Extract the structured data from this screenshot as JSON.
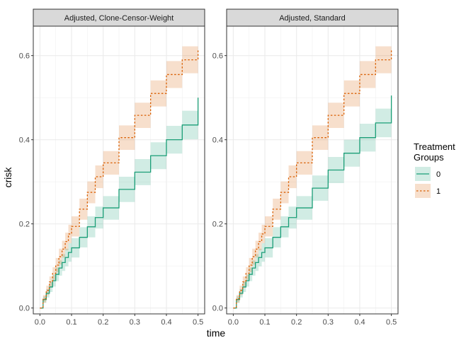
{
  "figure": {
    "xlabel": "time",
    "ylabel": "crisk",
    "legend": {
      "title_line1": "Treatment",
      "title_line2": "Groups",
      "placement": "right",
      "entries": [
        {
          "label": "0",
          "color": "#1b9e77",
          "linestyle": "solid"
        },
        {
          "label": "1",
          "color": "#d95f02",
          "linestyle": "dotted"
        }
      ]
    },
    "grid": true,
    "band_opacity": 0.2
  },
  "chart_data": [
    {
      "type": "line",
      "step": true,
      "title": "Adjusted, Clone-Censor-Weight",
      "xlabel": "time",
      "ylabel": "crisk",
      "xlim": [
        -0.021,
        0.521
      ],
      "ylim": [
        -0.014,
        0.67
      ],
      "xticks": [
        0.0,
        0.1,
        0.2,
        0.3,
        0.4,
        0.5
      ],
      "xtick_labels": [
        "0.0",
        "0.1",
        "0.2",
        "0.3",
        "0.4",
        "0.5"
      ],
      "yticks": [
        0.0,
        0.2,
        0.4,
        0.6
      ],
      "ytick_labels": [
        "0.0",
        "0.2",
        "0.4",
        "0.6"
      ],
      "series": [
        {
          "name": "0",
          "x": [
            0.0,
            0.01,
            0.02,
            0.03,
            0.04,
            0.05,
            0.06,
            0.07,
            0.08,
            0.09,
            0.1,
            0.125,
            0.15,
            0.175,
            0.2,
            0.25,
            0.3,
            0.35,
            0.4,
            0.45,
            0.5
          ],
          "y": [
            0.0,
            0.02,
            0.035,
            0.05,
            0.065,
            0.08,
            0.095,
            0.108,
            0.12,
            0.132,
            0.143,
            0.168,
            0.193,
            0.215,
            0.238,
            0.282,
            0.323,
            0.362,
            0.4,
            0.435,
            0.5
          ],
          "lower": [
            0.0,
            0.012,
            0.025,
            0.038,
            0.051,
            0.064,
            0.077,
            0.088,
            0.099,
            0.11,
            0.12,
            0.144,
            0.168,
            0.189,
            0.21,
            0.252,
            0.292,
            0.33,
            0.367,
            0.401,
            0.482
          ],
          "upper": [
            0.0,
            0.028,
            0.045,
            0.062,
            0.079,
            0.096,
            0.113,
            0.128,
            0.141,
            0.154,
            0.166,
            0.192,
            0.218,
            0.241,
            0.266,
            0.312,
            0.354,
            0.394,
            0.433,
            0.469,
            0.518
          ]
        },
        {
          "name": "1",
          "x": [
            0.0,
            0.01,
            0.02,
            0.03,
            0.04,
            0.05,
            0.06,
            0.07,
            0.08,
            0.09,
            0.1,
            0.125,
            0.15,
            0.175,
            0.2,
            0.25,
            0.3,
            0.35,
            0.4,
            0.45,
            0.5
          ],
          "y": [
            0.0,
            0.022,
            0.042,
            0.062,
            0.082,
            0.102,
            0.122,
            0.14,
            0.158,
            0.176,
            0.194,
            0.235,
            0.275,
            0.312,
            0.345,
            0.405,
            0.458,
            0.51,
            0.555,
            0.59,
            0.615
          ],
          "lower": [
            0.0,
            0.013,
            0.031,
            0.049,
            0.067,
            0.085,
            0.103,
            0.12,
            0.137,
            0.154,
            0.17,
            0.21,
            0.249,
            0.285,
            0.317,
            0.376,
            0.428,
            0.479,
            0.523,
            0.558,
            0.595
          ],
          "upper": [
            0.0,
            0.031,
            0.053,
            0.075,
            0.097,
            0.119,
            0.141,
            0.16,
            0.179,
            0.198,
            0.218,
            0.26,
            0.301,
            0.339,
            0.373,
            0.434,
            0.488,
            0.541,
            0.587,
            0.622,
            0.635
          ]
        }
      ]
    },
    {
      "type": "line",
      "step": true,
      "title": "Adjusted, Standard",
      "xlabel": "time",
      "ylabel": "crisk",
      "xlim": [
        -0.021,
        0.521
      ],
      "ylim": [
        -0.014,
        0.67
      ],
      "xticks": [
        0.0,
        0.1,
        0.2,
        0.3,
        0.4,
        0.5
      ],
      "xtick_labels": [
        "0.0",
        "0.1",
        "0.2",
        "0.3",
        "0.4",
        "0.5"
      ],
      "yticks": [
        0.0,
        0.2,
        0.4,
        0.6
      ],
      "ytick_labels": [
        "0.0",
        "0.2",
        "0.4",
        "0.6"
      ],
      "series": [
        {
          "name": "0",
          "x": [
            0.0,
            0.01,
            0.02,
            0.03,
            0.04,
            0.05,
            0.06,
            0.07,
            0.08,
            0.09,
            0.1,
            0.125,
            0.15,
            0.175,
            0.2,
            0.25,
            0.3,
            0.35,
            0.4,
            0.45,
            0.5
          ],
          "y": [
            0.0,
            0.02,
            0.035,
            0.05,
            0.065,
            0.08,
            0.095,
            0.108,
            0.12,
            0.132,
            0.143,
            0.168,
            0.193,
            0.215,
            0.238,
            0.285,
            0.328,
            0.368,
            0.405,
            0.44,
            0.505
          ],
          "lower": [
            0.0,
            0.012,
            0.025,
            0.038,
            0.051,
            0.064,
            0.077,
            0.088,
            0.099,
            0.11,
            0.12,
            0.144,
            0.168,
            0.189,
            0.21,
            0.255,
            0.297,
            0.336,
            0.372,
            0.406,
            0.487
          ],
          "upper": [
            0.0,
            0.028,
            0.045,
            0.062,
            0.079,
            0.096,
            0.113,
            0.128,
            0.141,
            0.154,
            0.166,
            0.192,
            0.218,
            0.241,
            0.266,
            0.315,
            0.359,
            0.4,
            0.438,
            0.474,
            0.523
          ]
        },
        {
          "name": "1",
          "x": [
            0.0,
            0.01,
            0.02,
            0.03,
            0.04,
            0.05,
            0.06,
            0.07,
            0.08,
            0.09,
            0.1,
            0.125,
            0.15,
            0.175,
            0.2,
            0.25,
            0.3,
            0.35,
            0.4,
            0.45,
            0.5
          ],
          "y": [
            0.0,
            0.022,
            0.042,
            0.062,
            0.082,
            0.102,
            0.122,
            0.14,
            0.158,
            0.176,
            0.194,
            0.235,
            0.275,
            0.312,
            0.345,
            0.405,
            0.458,
            0.51,
            0.555,
            0.59,
            0.615
          ],
          "lower": [
            0.0,
            0.013,
            0.031,
            0.049,
            0.067,
            0.085,
            0.103,
            0.12,
            0.137,
            0.154,
            0.17,
            0.21,
            0.249,
            0.285,
            0.317,
            0.376,
            0.428,
            0.479,
            0.523,
            0.558,
            0.595
          ],
          "upper": [
            0.0,
            0.031,
            0.053,
            0.075,
            0.097,
            0.119,
            0.141,
            0.16,
            0.179,
            0.198,
            0.218,
            0.26,
            0.301,
            0.339,
            0.373,
            0.434,
            0.488,
            0.541,
            0.587,
            0.622,
            0.635
          ]
        }
      ]
    }
  ]
}
